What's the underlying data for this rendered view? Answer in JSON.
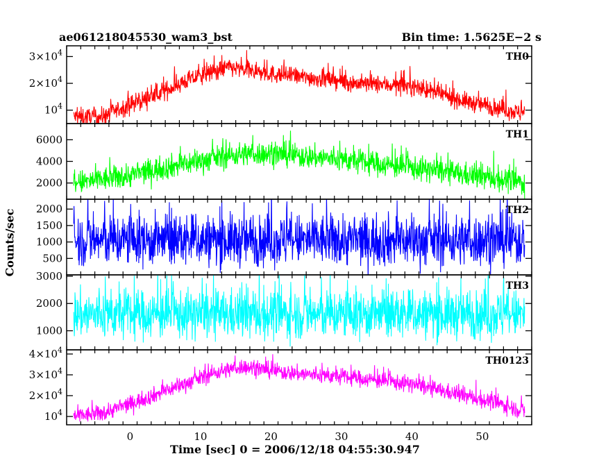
{
  "header": {
    "title": "ae061218045530_wam3_bst",
    "bin_time": "Bin time: 1.5625E−2 s"
  },
  "chart_data": {
    "type": "line",
    "xlabel": "Time [sec] 0 = 2006/12/18 04:55:30.947",
    "ylabel": "Counts/sec",
    "xlim": [
      -9,
      57
    ],
    "xticks": [
      0,
      10,
      20,
      30,
      40,
      50
    ],
    "data_start": -8,
    "data_end": 56,
    "grid": false,
    "panels": [
      {
        "name": "TH0",
        "color": "#ff0000",
        "ylim": [
          5000,
          34000
        ],
        "yticks": [
          10000,
          20000,
          30000
        ],
        "yticklabels": [
          "10^4",
          "2×10^4",
          "3×10^4"
        ],
        "x": [
          -8,
          -4,
          0,
          4,
          8,
          12,
          14,
          16,
          20,
          24,
          28,
          32,
          36,
          40,
          44,
          48,
          52,
          56
        ],
        "y": [
          7500,
          7500,
          12000,
          16000,
          21000,
          24500,
          26000,
          25000,
          23500,
          22500,
          21500,
          20000,
          19500,
          19000,
          16000,
          13000,
          11000,
          8500
        ],
        "noise": 3000
      },
      {
        "name": "TH1",
        "color": "#00ff00",
        "ylim": [
          500,
          7500
        ],
        "yticks": [
          2000,
          4000,
          6000
        ],
        "yticklabels": [
          "2000",
          "4000",
          "6000"
        ],
        "x": [
          -8,
          -4,
          0,
          4,
          8,
          12,
          16,
          20,
          24,
          28,
          32,
          36,
          40,
          44,
          48,
          52,
          56
        ],
        "y": [
          2000,
          2300,
          2700,
          3300,
          3800,
          4300,
          4700,
          4700,
          4500,
          4300,
          4000,
          3700,
          3400,
          3100,
          2700,
          2400,
          2000
        ],
        "noise": 1000
      },
      {
        "name": "TH2",
        "color": "#0000ff",
        "ylim": [
          0,
          2300
        ],
        "yticks": [
          500,
          1000,
          1500,
          2000
        ],
        "yticklabels": [
          "500",
          "1000",
          "1500",
          "2000"
        ],
        "x": [
          -8,
          56
        ],
        "y": [
          1050,
          1050
        ],
        "noise": 700
      },
      {
        "name": "TH3",
        "color": "#00ffff",
        "ylim": [
          300,
          3050
        ],
        "yticks": [
          1000,
          2000,
          3000
        ],
        "yticklabels": [
          "1000",
          "2000",
          "3000"
        ],
        "x": [
          -8,
          56
        ],
        "y": [
          1600,
          1600
        ],
        "noise": 800
      },
      {
        "name": "TH0123",
        "color": "#ff00ff",
        "ylim": [
          6000,
          42000
        ],
        "yticks": [
          10000,
          20000,
          30000,
          40000
        ],
        "yticklabels": [
          "10^4",
          "2×10^4",
          "3×10^4",
          "4×10^4"
        ],
        "x": [
          -8,
          -4,
          0,
          4,
          8,
          12,
          16,
          20,
          24,
          28,
          32,
          36,
          40,
          44,
          48,
          52,
          56
        ],
        "y": [
          10000,
          11500,
          16000,
          21000,
          26000,
          31000,
          34000,
          32000,
          30500,
          29500,
          28500,
          27000,
          25500,
          22500,
          19500,
          16500,
          12500
        ],
        "noise": 3500
      }
    ]
  }
}
